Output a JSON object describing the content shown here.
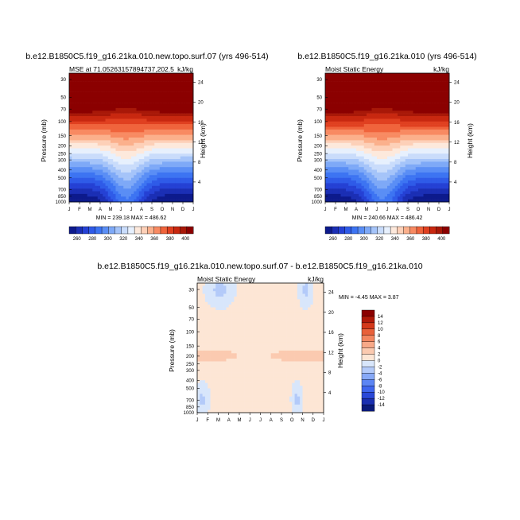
{
  "chart_data": [
    {
      "type": "heatmap",
      "id": "p1",
      "title": "b.e12.B1850C5.f19_g16.21ka.010.new.topo.surf.07 (yrs 496-514)",
      "left_label": "MSE at 71.05263157894737,202.5",
      "right_label": "kJ/kg",
      "ylabel": "Pressure (mb)",
      "ylabel2": "Height (km)",
      "x_categories": [
        "J",
        "F",
        "M",
        "A",
        "M",
        "J",
        "J",
        "A",
        "S",
        "O",
        "N",
        "D",
        "J"
      ],
      "pressure_ticks": [
        "30",
        "50",
        "70",
        "100",
        "150",
        "200",
        "250",
        "300",
        "400",
        "500",
        "700",
        "850",
        "1000"
      ],
      "height_ticks": [
        "24",
        "20",
        "16",
        "12",
        "8",
        "4"
      ],
      "stats": "MIN = 239.18 MAX = 486.62",
      "min": 239.18,
      "max": 486.62,
      "colorbar_levels": [
        "260",
        "280",
        "300",
        "320",
        "340",
        "360",
        "380",
        "400"
      ]
    },
    {
      "type": "heatmap",
      "id": "p2",
      "title": "b.e12.B1850C5.f19_g16.21ka.010 (yrs 496-514)",
      "left_label": "Moist Static Energy",
      "right_label": "kJ/kg",
      "ylabel": "Pressure (mb)",
      "ylabel2": "Height (km)",
      "x_categories": [
        "J",
        "F",
        "M",
        "A",
        "M",
        "J",
        "J",
        "A",
        "S",
        "O",
        "N",
        "D",
        "J"
      ],
      "pressure_ticks": [
        "30",
        "50",
        "70",
        "100",
        "150",
        "200",
        "250",
        "300",
        "400",
        "500",
        "700",
        "850",
        "1000"
      ],
      "height_ticks": [
        "24",
        "20",
        "16",
        "12",
        "8",
        "4"
      ],
      "stats": "MIN = 240.66 MAX = 486.42",
      "min": 240.66,
      "max": 486.42,
      "colorbar_levels": [
        "260",
        "280",
        "300",
        "320",
        "340",
        "360",
        "380",
        "400"
      ]
    },
    {
      "type": "heatmap",
      "id": "p3",
      "title": "b.e12.B1850C5.f19_g16.21ka.010.new.topo.surf.07 - b.e12.B1850C5.f19_g16.21ka.010",
      "left_label": "Moist Static Energy",
      "right_label": "kJ/kg",
      "ylabel": "Pressure (mb)",
      "ylabel2": "Height (km)",
      "x_categories": [
        "J",
        "F",
        "M",
        "A",
        "M",
        "J",
        "J",
        "A",
        "S",
        "O",
        "N",
        "D",
        "J"
      ],
      "pressure_ticks": [
        "30",
        "50",
        "70",
        "100",
        "150",
        "200",
        "250",
        "300",
        "400",
        "500",
        "700",
        "850",
        "1000"
      ],
      "height_ticks": [
        "24",
        "20",
        "16",
        "12",
        "8",
        "4"
      ],
      "stats": "MIN = -4.45 MAX =  3.87",
      "min": -4.45,
      "max": 3.87,
      "colorbar_levels": [
        "14",
        "12",
        "10",
        "8",
        "6",
        "4",
        "2",
        "0",
        "-2",
        "-4",
        "-6",
        "-8",
        "-10",
        "-12",
        "-14"
      ]
    }
  ],
  "colors": {
    "mse_scale": [
      "#0d1a8c",
      "#1b2fb5",
      "#2541d4",
      "#2f5be8",
      "#3d74f2",
      "#5a8ef5",
      "#7ea9f7",
      "#a5c4f9",
      "#c9dcfb",
      "#e7f0fd",
      "#fde9dc",
      "#fdd0b8",
      "#fbb08c",
      "#f88a62",
      "#f0643c",
      "#e04020",
      "#c82810",
      "#a81808",
      "#8b0000"
    ],
    "diff_scale": [
      "#0a1a7a",
      "#1a2fb0",
      "#2a48d8",
      "#3f66ee",
      "#5c85f4",
      "#87a9f7",
      "#b3caf9",
      "#d8e6fb",
      "#fde6d5",
      "#fbcab0",
      "#f8a988",
      "#f38660",
      "#e8603a",
      "#d4381a",
      "#b01808",
      "#8b0000"
    ],
    "axis": "#000000"
  }
}
